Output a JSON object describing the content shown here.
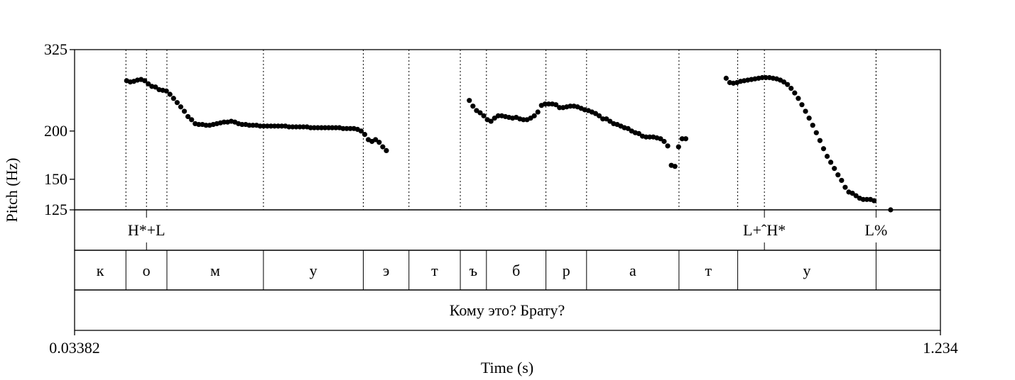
{
  "chart_data": {
    "type": "scatter",
    "title": "",
    "xlabel": "Time (s)",
    "ylabel": "Pitch (Hz)",
    "xlim": [
      0.03382,
      1.234
    ],
    "ylim": [
      125,
      325
    ],
    "x_tick_labels": [
      "0.03382",
      "1.234"
    ],
    "y_ticks": [
      125,
      150,
      200,
      325
    ],
    "y_tick_labels": [
      "125",
      "150",
      "200",
      "325"
    ],
    "y_scale": "log",
    "grid": false,
    "series": [
      {
        "points": [
          [
            0.106,
            270
          ],
          [
            0.111,
            268
          ],
          [
            0.116,
            269
          ],
          [
            0.121,
            271
          ],
          [
            0.126,
            272
          ],
          [
            0.131,
            270
          ],
          [
            0.136,
            265
          ],
          [
            0.141,
            261
          ],
          [
            0.146,
            260
          ],
          [
            0.151,
            256
          ],
          [
            0.156,
            255
          ],
          [
            0.161,
            254
          ],
          [
            0.166,
            249
          ],
          [
            0.171,
            243
          ],
          [
            0.176,
            237
          ],
          [
            0.181,
            231
          ],
          [
            0.186,
            225
          ],
          [
            0.191,
            218
          ],
          [
            0.196,
            214
          ],
          [
            0.201,
            209
          ],
          [
            0.206,
            208
          ],
          [
            0.211,
            208
          ],
          [
            0.216,
            207
          ],
          [
            0.221,
            207
          ],
          [
            0.226,
            208
          ],
          [
            0.231,
            209
          ],
          [
            0.236,
            210
          ],
          [
            0.241,
            211
          ],
          [
            0.246,
            211
          ],
          [
            0.251,
            212
          ],
          [
            0.256,
            211
          ],
          [
            0.261,
            209
          ],
          [
            0.266,
            208
          ],
          [
            0.271,
            208
          ],
          [
            0.276,
            207
          ],
          [
            0.281,
            207
          ],
          [
            0.286,
            207
          ],
          [
            0.291,
            206
          ],
          [
            0.296,
            206
          ],
          [
            0.301,
            206
          ],
          [
            0.306,
            206
          ],
          [
            0.311,
            206
          ],
          [
            0.316,
            206
          ],
          [
            0.321,
            206
          ],
          [
            0.326,
            206
          ],
          [
            0.331,
            205
          ],
          [
            0.336,
            205
          ],
          [
            0.341,
            205
          ],
          [
            0.346,
            205
          ],
          [
            0.351,
            205
          ],
          [
            0.356,
            205
          ],
          [
            0.361,
            204
          ],
          [
            0.366,
            204
          ],
          [
            0.371,
            204
          ],
          [
            0.376,
            204
          ],
          [
            0.381,
            204
          ],
          [
            0.386,
            204
          ],
          [
            0.391,
            204
          ],
          [
            0.396,
            204
          ],
          [
            0.401,
            204
          ],
          [
            0.406,
            203
          ],
          [
            0.411,
            203
          ],
          [
            0.416,
            203
          ],
          [
            0.421,
            203
          ],
          [
            0.426,
            202
          ],
          [
            0.431,
            200
          ],
          [
            0.436,
            196
          ],
          [
            0.441,
            190
          ],
          [
            0.446,
            188
          ],
          [
            0.451,
            190
          ],
          [
            0.456,
            187
          ],
          [
            0.461,
            182
          ],
          [
            0.466,
            178
          ],
          [
            0.581,
            240
          ],
          [
            0.586,
            232
          ],
          [
            0.591,
            226
          ],
          [
            0.596,
            223
          ],
          [
            0.601,
            219
          ],
          [
            0.606,
            214
          ],
          [
            0.611,
            212
          ],
          [
            0.616,
            216
          ],
          [
            0.621,
            219
          ],
          [
            0.626,
            219
          ],
          [
            0.631,
            218
          ],
          [
            0.636,
            217
          ],
          [
            0.641,
            216
          ],
          [
            0.646,
            217
          ],
          [
            0.651,
            215
          ],
          [
            0.656,
            214
          ],
          [
            0.661,
            214
          ],
          [
            0.666,
            216
          ],
          [
            0.671,
            219
          ],
          [
            0.676,
            224
          ],
          [
            0.681,
            233
          ],
          [
            0.686,
            235
          ],
          [
            0.691,
            235
          ],
          [
            0.696,
            235
          ],
          [
            0.701,
            234
          ],
          [
            0.706,
            230
          ],
          [
            0.711,
            230
          ],
          [
            0.716,
            231
          ],
          [
            0.721,
            232
          ],
          [
            0.726,
            232
          ],
          [
            0.731,
            231
          ],
          [
            0.736,
            229
          ],
          [
            0.741,
            227
          ],
          [
            0.746,
            226
          ],
          [
            0.751,
            224
          ],
          [
            0.756,
            222
          ],
          [
            0.761,
            219
          ],
          [
            0.766,
            215
          ],
          [
            0.771,
            215
          ],
          [
            0.776,
            212
          ],
          [
            0.781,
            209
          ],
          [
            0.786,
            208
          ],
          [
            0.791,
            206
          ],
          [
            0.796,
            204
          ],
          [
            0.801,
            203
          ],
          [
            0.806,
            200
          ],
          [
            0.811,
            198
          ],
          [
            0.816,
            197
          ],
          [
            0.821,
            194
          ],
          [
            0.826,
            193
          ],
          [
            0.831,
            193
          ],
          [
            0.836,
            193
          ],
          [
            0.841,
            192
          ],
          [
            0.846,
            191
          ],
          [
            0.851,
            188
          ],
          [
            0.856,
            183
          ],
          [
            0.861,
            163
          ],
          [
            0.866,
            162
          ],
          [
            0.871,
            182
          ],
          [
            0.876,
            191
          ],
          [
            0.881,
            191
          ],
          [
            0.937,
            274
          ],
          [
            0.942,
            267
          ],
          [
            0.947,
            266
          ],
          [
            0.952,
            267
          ],
          [
            0.957,
            269
          ],
          [
            0.962,
            270
          ],
          [
            0.967,
            271
          ],
          [
            0.972,
            272
          ],
          [
            0.977,
            273
          ],
          [
            0.982,
            274
          ],
          [
            0.987,
            275
          ],
          [
            0.992,
            275
          ],
          [
            0.997,
            275
          ],
          [
            1.002,
            274
          ],
          [
            1.007,
            273
          ],
          [
            1.012,
            271
          ],
          [
            1.017,
            268
          ],
          [
            1.022,
            264
          ],
          [
            1.027,
            258
          ],
          [
            1.032,
            251
          ],
          [
            1.037,
            243
          ],
          [
            1.042,
            234
          ],
          [
            1.047,
            225
          ],
          [
            1.052,
            216
          ],
          [
            1.057,
            207
          ],
          [
            1.062,
            198
          ],
          [
            1.067,
            189
          ],
          [
            1.072,
            180
          ],
          [
            1.077,
            172
          ],
          [
            1.082,
            166
          ],
          [
            1.087,
            160
          ],
          [
            1.092,
            154
          ],
          [
            1.097,
            149
          ],
          [
            1.102,
            143
          ],
          [
            1.107,
            139
          ],
          [
            1.112,
            138
          ],
          [
            1.117,
            136
          ],
          [
            1.122,
            134
          ],
          [
            1.127,
            133
          ],
          [
            1.132,
            133
          ],
          [
            1.137,
            133
          ],
          [
            1.142,
            132
          ],
          [
            1.165,
            125
          ]
        ]
      }
    ],
    "tiers": {
      "tones": [
        {
          "label": "H*+L",
          "time": 0.1335
        },
        {
          "label": "L+ˆH*",
          "time": 0.99
        },
        {
          "label": "L%",
          "time": 1.1448
        }
      ],
      "segments": {
        "bounds": [
          0.03382,
          0.105,
          0.1618,
          0.2956,
          0.434,
          0.4973,
          0.5685,
          0.6047,
          0.6872,
          0.7435,
          0.8716,
          0.953,
          1.1448,
          1.234
        ],
        "labels": [
          "к",
          "о",
          "м",
          "у",
          "э",
          "т",
          "ъ",
          "б",
          "р",
          "а",
          "т",
          "у",
          ""
        ]
      },
      "sentence": "Кому это? Брату?"
    }
  }
}
